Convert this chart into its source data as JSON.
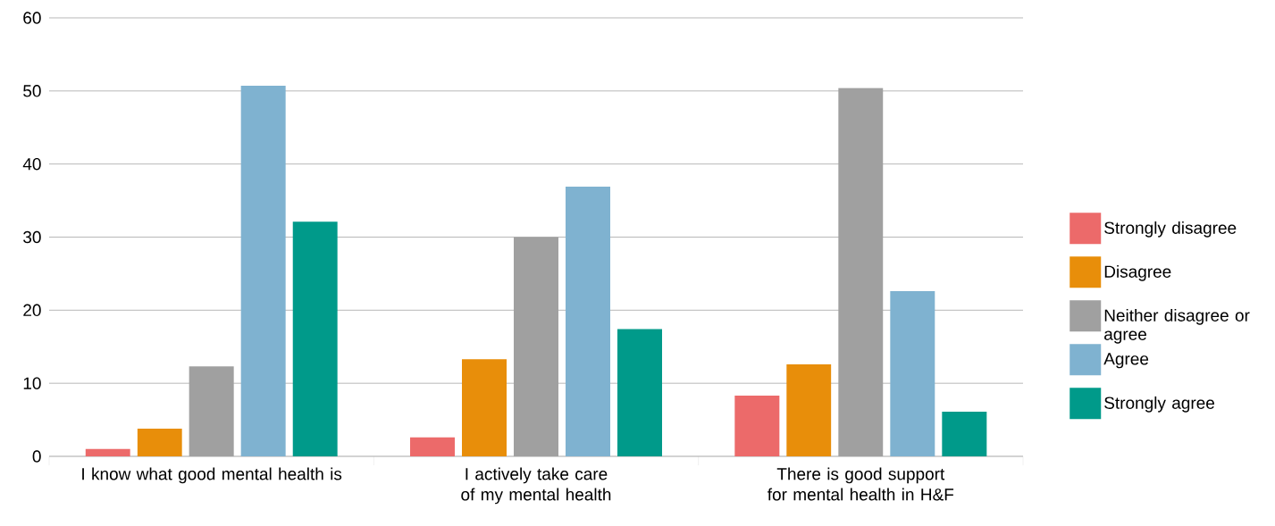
{
  "chart_data": {
    "type": "bar",
    "categories": [
      "I know what good mental health is",
      "I actively take care of my mental health",
      "There is good support for mental health in H&F"
    ],
    "series": [
      {
        "name": "Strongly disagree",
        "color": "#ec6a6a",
        "values": [
          1.0,
          2.6,
          8.3
        ]
      },
      {
        "name": "Disagree",
        "color": "#e88e0a",
        "values": [
          3.8,
          13.3,
          12.6
        ]
      },
      {
        "name": "Neither disagree or agree",
        "color": "#a0a0a0",
        "values": [
          12.3,
          30.0,
          50.4
        ]
      },
      {
        "name": "Agree",
        "color": "#7fb2d0",
        "values": [
          50.7,
          36.9,
          22.6
        ]
      },
      {
        "name": "Strongly agree",
        "color": "#009a8a",
        "values": [
          32.1,
          17.4,
          6.1
        ]
      }
    ],
    "ylim": [
      0,
      60
    ],
    "yticks": [
      0,
      10,
      20,
      30,
      40,
      50,
      60
    ],
    "grid": "y",
    "legend": "right"
  }
}
